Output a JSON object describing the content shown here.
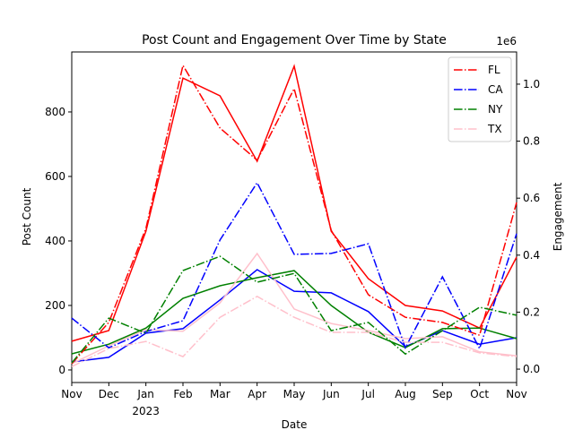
{
  "chart_data": {
    "type": "line",
    "title": "Post Count and Engagement Over Time by State",
    "x_label": "Date",
    "y_label": "Post Count",
    "y2_label": "Engagement",
    "y2_offset_label": "1e6",
    "categories": [
      "Nov",
      "Dec",
      "Jan",
      "Feb",
      "Mar",
      "Apr",
      "May",
      "Jun",
      "Jul",
      "Aug",
      "Sep",
      "Oct",
      "Nov"
    ],
    "year_label": "2023",
    "ylim": [
      -39,
      986
    ],
    "yticks": [
      0,
      200,
      400,
      600,
      800
    ],
    "y2lim": [
      -47000,
      1113000
    ],
    "y2ticks": [
      {
        "value": 0,
        "label": "0.0"
      },
      {
        "value": 200000,
        "label": "0.2"
      },
      {
        "value": 400000,
        "label": "0.4"
      },
      {
        "value": 600000,
        "label": "0.6"
      },
      {
        "value": 800000,
        "label": "0.8"
      },
      {
        "value": 1000000,
        "label": "1.0"
      }
    ],
    "legend": "upper right",
    "series": [
      {
        "color": "#ff0000",
        "style": "solid",
        "axis": "y",
        "values": [
          89,
          122,
          430,
          905,
          850,
          647,
          942,
          430,
          283,
          200,
          183,
          130,
          350
        ]
      },
      {
        "color": "#0000ff",
        "style": "solid",
        "axis": "y",
        "values": [
          25,
          39,
          114,
          128,
          217,
          311,
          244,
          239,
          181,
          72,
          122,
          80,
          100
        ]
      },
      {
        "color": "#008000",
        "style": "solid",
        "axis": "y",
        "values": [
          50,
          80,
          130,
          222,
          261,
          286,
          308,
          200,
          117,
          69,
          128,
          130,
          97
        ]
      },
      {
        "color": "#ffc0cb",
        "style": "solid",
        "axis": "y",
        "values": [
          19,
          75,
          125,
          120,
          208,
          361,
          189,
          144,
          122,
          97,
          103,
          56,
          44
        ]
      },
      {
        "name": "FL",
        "color": "#ff0000",
        "style": "dashdot",
        "axis": "y2",
        "values": [
          19000,
          164000,
          494000,
          1066000,
          846000,
          733000,
          984000,
          487000,
          261000,
          182000,
          164000,
          119000,
          585000
        ]
      },
      {
        "name": "CA",
        "color": "#0000ff",
        "style": "dashdot",
        "axis": "y2",
        "values": [
          179000,
          75000,
          132000,
          170000,
          453000,
          654000,
          403000,
          406000,
          440000,
          75000,
          324000,
          72000,
          475000
        ]
      },
      {
        "name": "NY",
        "color": "#008000",
        "style": "dashdot",
        "axis": "y2",
        "values": [
          22000,
          179000,
          126000,
          346000,
          396000,
          305000,
          336000,
          135000,
          164000,
          53000,
          135000,
          217000,
          189000
        ]
      },
      {
        "name": "TX",
        "color": "#ffc0cb",
        "style": "dashdot",
        "axis": "y2",
        "values": [
          9000,
          72000,
          97000,
          44000,
          182000,
          255000,
          182000,
          129000,
          129000,
          94000,
          94000,
          57000,
          44000
        ]
      }
    ]
  }
}
